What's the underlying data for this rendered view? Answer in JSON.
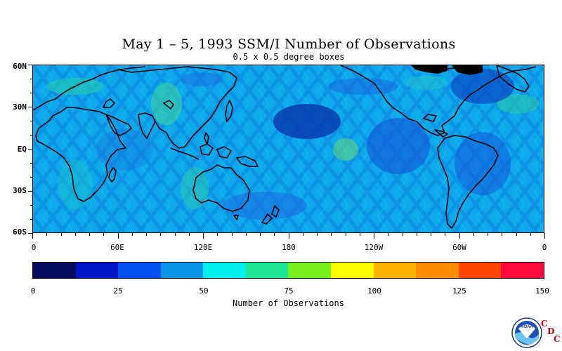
{
  "title": "May 1 – 5, 1993 SSM/I Number of Observations",
  "subtitle": "0.5 x 0.5 degree boxes",
  "lat_labels": [
    "60N",
    "30N",
    "EQ",
    "30S",
    "60S"
  ],
  "lon_labels": [
    "0",
    "60E",
    "120E",
    "180",
    "120W",
    "60W",
    "0"
  ],
  "colorbar": {
    "colors": [
      "#000b5e",
      "#0014c8",
      "#0050f0",
      "#0a96e6",
      "#00f0f0",
      "#1ee696",
      "#78f01e",
      "#ffff00",
      "#ffb400",
      "#ff8c00",
      "#ff4600",
      "#ff0a3c"
    ],
    "tick_labels": [
      "0",
      "25",
      "50",
      "75",
      "100",
      "125",
      "150"
    ],
    "title": "Number of Observations"
  },
  "logo": {
    "icon": "noaa-logo-icon",
    "inner_text": "NOAA",
    "letters": [
      "C",
      "D",
      "C"
    ]
  }
}
